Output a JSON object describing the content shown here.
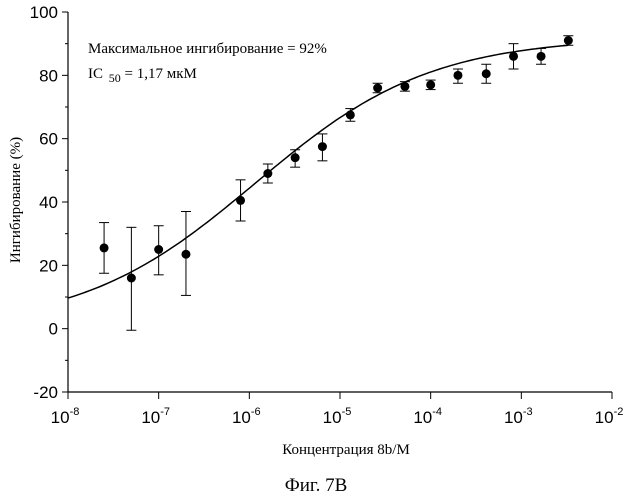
{
  "chart_data": {
    "type": "scatter",
    "xscale": "log",
    "xlim": [
      1e-08,
      0.01
    ],
    "ylim": [
      -20,
      100
    ],
    "x_tick_base": "10",
    "x_tick_exponents": [
      "-8",
      "-7",
      "-6",
      "-5",
      "-4",
      "-3",
      "-2"
    ],
    "y_ticks": [
      "-20",
      "0",
      "20",
      "40",
      "60",
      "80",
      "100"
    ],
    "xlabel": "Концентрация 8b/M",
    "ylabel": "Ингибирование (%)",
    "annotation_line1": "Максимальное ингибирование = 92%",
    "annotation_ic": "IC",
    "annotation_ic_sub": "50",
    "annotation_ic_value": " = 1,17 мкМ",
    "caption": "Фиг. 7B",
    "points": [
      {
        "x": 2.5e-08,
        "y": 25.5,
        "err_lo": 17.5,
        "err_hi": 33.5
      },
      {
        "x": 5e-08,
        "y": 16,
        "err_lo": -0.5,
        "err_hi": 32
      },
      {
        "x": 1e-07,
        "y": 25,
        "err_lo": 17,
        "err_hi": 32.5
      },
      {
        "x": 2e-07,
        "y": 23.5,
        "err_lo": 10.5,
        "err_hi": 37
      },
      {
        "x": 8e-07,
        "y": 40.5,
        "err_lo": 34,
        "err_hi": 47
      },
      {
        "x": 1.6e-06,
        "y": 49,
        "err_lo": 46,
        "err_hi": 52
      },
      {
        "x": 3.2e-06,
        "y": 54,
        "err_lo": 51,
        "err_hi": 56.5
      },
      {
        "x": 6.4e-06,
        "y": 57.5,
        "err_lo": 53,
        "err_hi": 61.5
      },
      {
        "x": 1.3e-05,
        "y": 67.5,
        "err_lo": 65.5,
        "err_hi": 69.5
      },
      {
        "x": 2.6e-05,
        "y": 76,
        "err_lo": 74.5,
        "err_hi": 77.5
      },
      {
        "x": 5.2e-05,
        "y": 76.5,
        "err_lo": 75,
        "err_hi": 78
      },
      {
        "x": 0.0001,
        "y": 77,
        "err_lo": 75.5,
        "err_hi": 78.5
      },
      {
        "x": 0.0002,
        "y": 80,
        "err_lo": 77.5,
        "err_hi": 82
      },
      {
        "x": 0.00041,
        "y": 80.5,
        "err_lo": 77.5,
        "err_hi": 83.5
      },
      {
        "x": 0.00082,
        "y": 86,
        "err_lo": 82,
        "err_hi": 90
      },
      {
        "x": 0.00165,
        "y": 86,
        "err_lo": 83.5,
        "err_hi": 88.5
      },
      {
        "x": 0.0033,
        "y": 91,
        "err_lo": 89.5,
        "err_hi": 92.5
      }
    ],
    "fit_curve": {
      "bottom": 0,
      "top": 92,
      "ic50": 1.17e-06,
      "hill": 0.45,
      "x_from": 1e-08,
      "x_to": 0.0033
    }
  }
}
